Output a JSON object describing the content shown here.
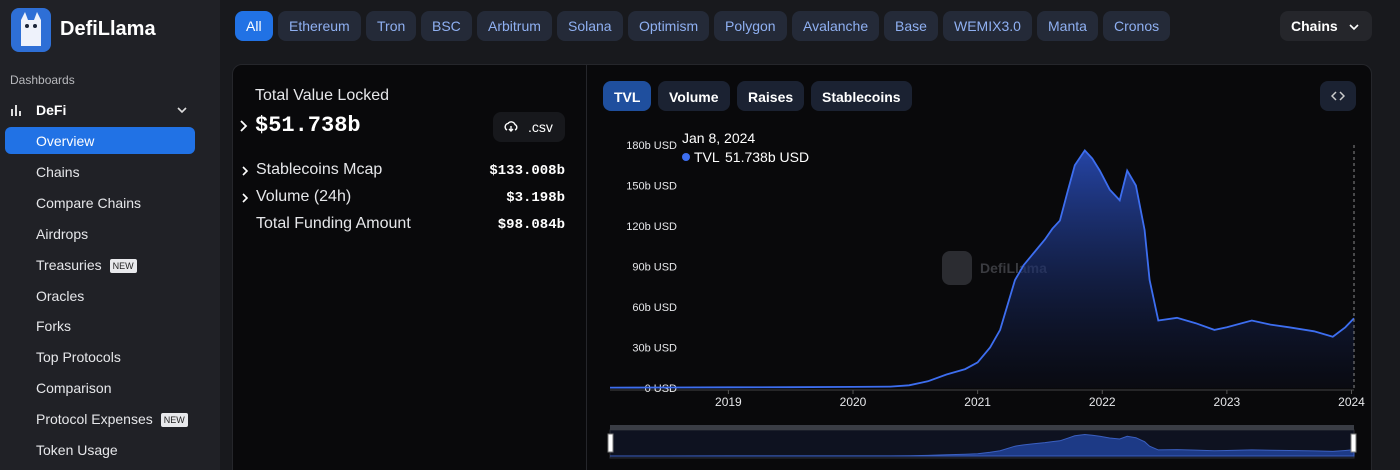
{
  "sidebar": {
    "logo": "DefiLlama",
    "section": "Dashboards",
    "group": "DeFi",
    "items": [
      {
        "label": "Overview"
      },
      {
        "label": "Chains"
      },
      {
        "label": "Compare Chains"
      },
      {
        "label": "Airdrops"
      },
      {
        "label": "Treasuries",
        "badge": "NEW"
      },
      {
        "label": "Oracles"
      },
      {
        "label": "Forks"
      },
      {
        "label": "Top Protocols"
      },
      {
        "label": "Comparison"
      },
      {
        "label": "Protocol Expenses",
        "badge": "NEW"
      },
      {
        "label": "Token Usage"
      }
    ]
  },
  "chain_tabs": [
    "All",
    "Ethereum",
    "Tron",
    "BSC",
    "Arbitrum",
    "Solana",
    "Optimism",
    "Polygon",
    "Avalanche",
    "Base",
    "WEMIX3.0",
    "Manta",
    "Cronos"
  ],
  "chain_select": "Chains",
  "stats": {
    "title": "Total Value Locked",
    "value": "$51.738b",
    "download": ".csv",
    "rows": [
      {
        "label": "Stablecoins Mcap",
        "value": "$133.008b"
      },
      {
        "label": "Volume (24h)",
        "value": "$3.198b"
      },
      {
        "label": "Total Funding Amount",
        "value": "$98.084b"
      }
    ]
  },
  "chart_tabs": [
    "TVL",
    "Volume",
    "Raises",
    "Stablecoins"
  ],
  "chart_data": {
    "type": "area",
    "watermark": "DefiLlama",
    "tooltip": {
      "date": "Jan 8, 2024",
      "value": 51.738,
      "value_label": "51.738b USD"
    },
    "x": [
      2018.05,
      2018.5,
      2019.0,
      2019.5,
      2020.0,
      2020.3,
      2020.45,
      2020.6,
      2020.75,
      2020.9,
      2021.0,
      2021.1,
      2021.18,
      2021.3,
      2021.37,
      2021.45,
      2021.54,
      2021.6,
      2021.66,
      2021.72,
      2021.78,
      2021.86,
      2021.92,
      2021.98,
      2022.06,
      2022.14,
      2022.2,
      2022.27,
      2022.34,
      2022.38,
      2022.45,
      2022.6,
      2022.75,
      2022.9,
      2023.0,
      2023.2,
      2023.35,
      2023.5,
      2023.7,
      2023.85,
      2023.95,
      2024.02
    ],
    "series": [
      {
        "name": "TVL",
        "color": "#3d6ef0",
        "values": [
          0.3,
          0.4,
          0.5,
          0.6,
          0.8,
          1,
          2,
          5,
          10,
          14,
          19,
          30,
          43,
          80,
          91,
          100,
          110,
          118,
          124,
          145,
          165,
          176,
          170,
          161,
          147,
          139,
          161,
          150,
          117,
          80,
          50,
          52,
          48,
          43,
          45,
          50,
          47,
          45,
          42,
          38,
          45,
          51.738
        ]
      }
    ],
    "xlim": [
      2018.05,
      2024.02
    ],
    "xticks": [
      2019,
      2020,
      2021,
      2022,
      2023,
      2024
    ],
    "ylim": [
      0,
      180
    ],
    "yticks": [
      {
        "value": 0,
        "label": "0 USD"
      },
      {
        "value": 30,
        "label": "30b USD"
      },
      {
        "value": 60,
        "label": "60b USD"
      },
      {
        "value": 90,
        "label": "90b USD"
      },
      {
        "value": 120,
        "label": "120b USD"
      },
      {
        "value": 150,
        "label": "150b USD"
      },
      {
        "value": 180,
        "label": "180b USD"
      }
    ]
  }
}
